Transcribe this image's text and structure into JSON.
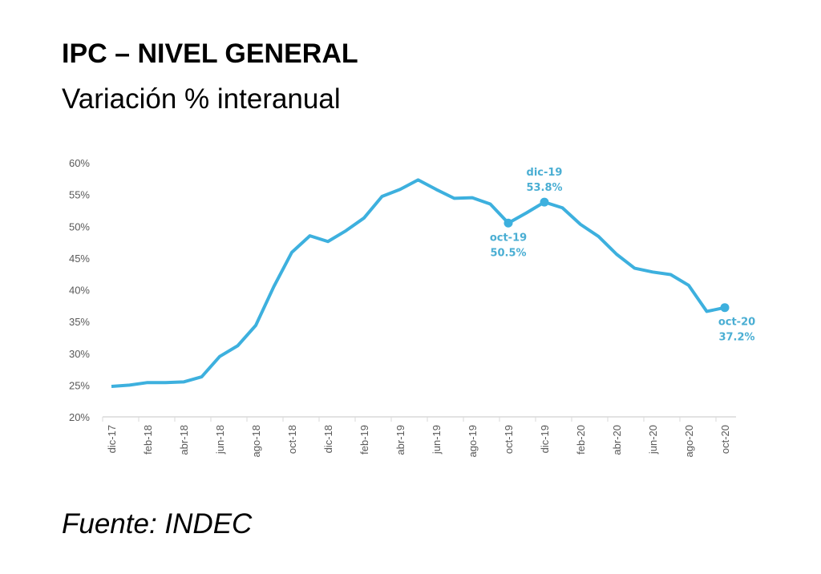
{
  "header": {
    "title": "IPC – NIVEL GENERAL",
    "subtitle": "Variación % interanual"
  },
  "footer": {
    "source": "Fuente: INDEC"
  },
  "colors": {
    "line": "#3db0de",
    "annotation": "#4aaed3",
    "axis": "#d9d9d9",
    "tick_text": "#595959"
  },
  "chart_data": {
    "type": "line",
    "x": [
      "dic-17",
      "ene-18",
      "feb-18",
      "mar-18",
      "abr-18",
      "may-18",
      "jun-18",
      "jul-18",
      "ago-18",
      "sep-18",
      "oct-18",
      "nov-18",
      "dic-18",
      "ene-19",
      "feb-19",
      "mar-19",
      "abr-19",
      "may-19",
      "jun-19",
      "jul-19",
      "ago-19",
      "sep-19",
      "oct-19",
      "nov-19",
      "dic-19",
      "ene-20",
      "feb-20",
      "mar-20",
      "abr-20",
      "may-20",
      "jun-20",
      "jul-20",
      "ago-20",
      "sep-20",
      "oct-20"
    ],
    "series": [
      {
        "values": [
          24.8,
          25.0,
          25.4,
          25.4,
          25.5,
          26.3,
          29.5,
          31.2,
          34.4,
          40.5,
          45.9,
          48.5,
          47.6,
          49.3,
          51.3,
          54.7,
          55.8,
          57.3,
          55.8,
          54.4,
          54.5,
          53.5,
          50.5,
          52.1,
          53.8,
          52.9,
          50.3,
          48.4,
          45.6,
          43.4,
          42.8,
          42.4,
          40.7,
          36.6,
          37.2
        ]
      }
    ],
    "x_tick_labels": [
      "dic-17",
      "feb-18",
      "abr-18",
      "jun-18",
      "ago-18",
      "oct-18",
      "dic-18",
      "feb-19",
      "abr-19",
      "jun-19",
      "ago-19",
      "oct-19",
      "dic-19",
      "feb-20",
      "abr-20",
      "jun-20",
      "ago-20",
      "oct-20"
    ],
    "y_tick_labels": [
      "20%",
      "25%",
      "30%",
      "35%",
      "40%",
      "45%",
      "50%",
      "55%",
      "60%"
    ],
    "ylim": [
      20,
      60
    ],
    "grid": false,
    "annotations": [
      {
        "x": "oct-19",
        "label": "oct-19",
        "value": "50.5%",
        "position": "below"
      },
      {
        "x": "dic-19",
        "label": "dic-19",
        "value": "53.8%",
        "position": "above"
      },
      {
        "x": "oct-20",
        "label": "oct-20",
        "value": "37.2%",
        "position": "below"
      }
    ]
  }
}
